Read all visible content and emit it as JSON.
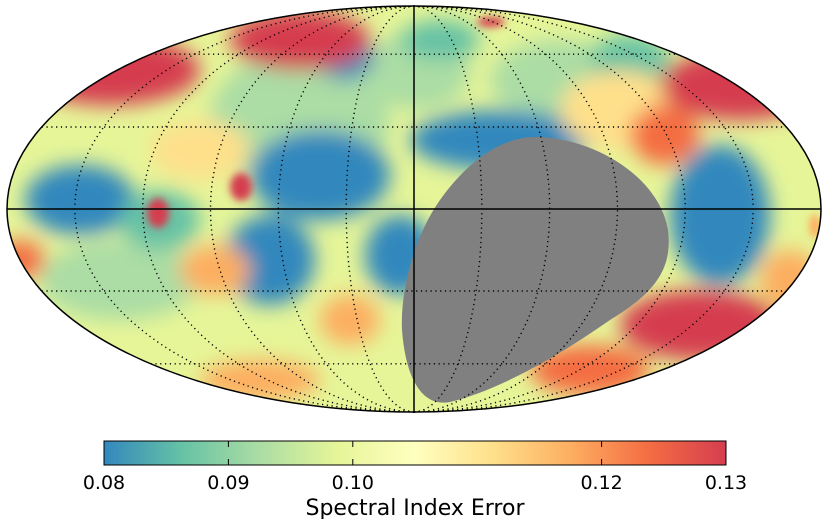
{
  "figure": {
    "projection": "mollweide",
    "graticule": {
      "meridian_step_deg": 30,
      "parallel_step_deg": 30,
      "style": "dotted"
    },
    "masked_region_color": "#808080"
  },
  "colorbar": {
    "label": "Spectral Index Error",
    "min": 0.08,
    "max": 0.13,
    "ticks": [
      0.08,
      0.09,
      0.1,
      0.12,
      0.13
    ],
    "tick_labels": [
      "0.08",
      "0.09",
      "0.10",
      "0.12",
      "0.13"
    ],
    "colormap": "Spectral_r",
    "stops": [
      "#3288bd",
      "#66c2a5",
      "#abdda4",
      "#e6f598",
      "#ffffbf",
      "#fee08b",
      "#fdae61",
      "#f46d43",
      "#d53e4f"
    ]
  },
  "chart_data": {
    "type": "heatmap",
    "projection": "mollweide",
    "title": "",
    "colorbar_label": "Spectral Index Error",
    "value_range": [
      0.08,
      0.13
    ],
    "ticks": [
      0.08,
      0.09,
      0.1,
      0.12,
      0.13
    ],
    "masked_region": "grey, centred near l = -75°, b = -15°"
  }
}
